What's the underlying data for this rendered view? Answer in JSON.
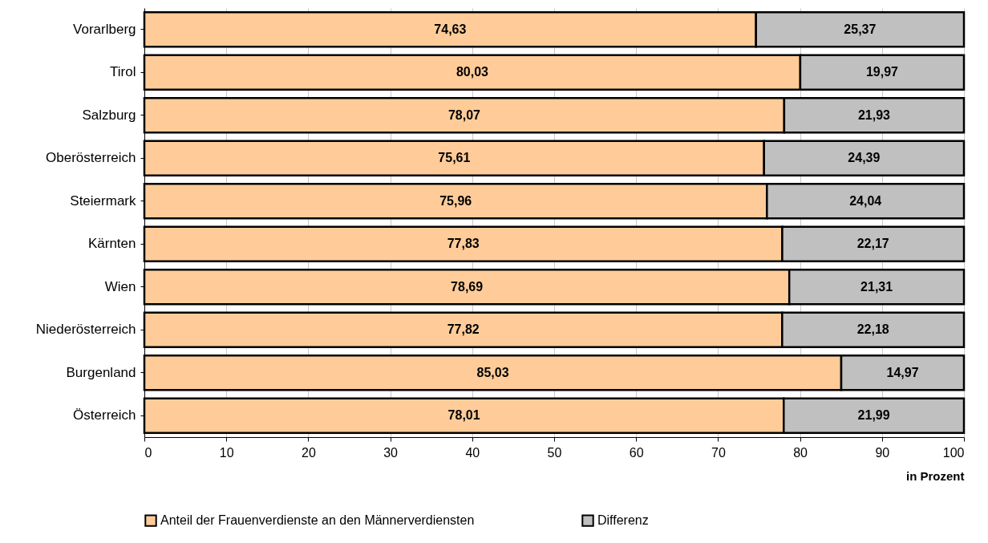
{
  "chart_data": {
    "type": "bar",
    "orientation": "horizontal",
    "stacked": true,
    "categories": [
      "Vorarlberg",
      "Tirol",
      "Salzburg",
      "Oberösterreich",
      "Steiermark",
      "Kärnten",
      "Wien",
      "Niederösterreich",
      "Burgenland",
      "Österreich"
    ],
    "series": [
      {
        "name": "Anteil der Frauenverdienste an den Männerverdiensten",
        "color": "#ffcc99",
        "values": [
          74.63,
          80.03,
          78.07,
          75.61,
          75.96,
          77.83,
          78.69,
          77.82,
          85.03,
          78.01
        ],
        "value_labels": [
          "74,63",
          "80,03",
          "78,07",
          "75,61",
          "75,96",
          "77,83",
          "78,69",
          "77,82",
          "85,03",
          "78,01"
        ]
      },
      {
        "name": "Differenz",
        "color": "#c0c0c0",
        "values": [
          25.37,
          19.97,
          21.93,
          24.39,
          24.04,
          22.17,
          21.31,
          22.18,
          14.97,
          21.99
        ],
        "value_labels": [
          "25,37",
          "19,97",
          "21,93",
          "24,39",
          "24,04",
          "22,17",
          "21,31",
          "22,18",
          "14,97",
          "21,99"
        ]
      }
    ],
    "xlabel": "in Prozent",
    "xlim": [
      0,
      100
    ],
    "xticks": [
      0,
      10,
      20,
      30,
      40,
      50,
      60,
      70,
      80,
      90,
      100
    ],
    "grid": "x",
    "legend": "bottom"
  }
}
